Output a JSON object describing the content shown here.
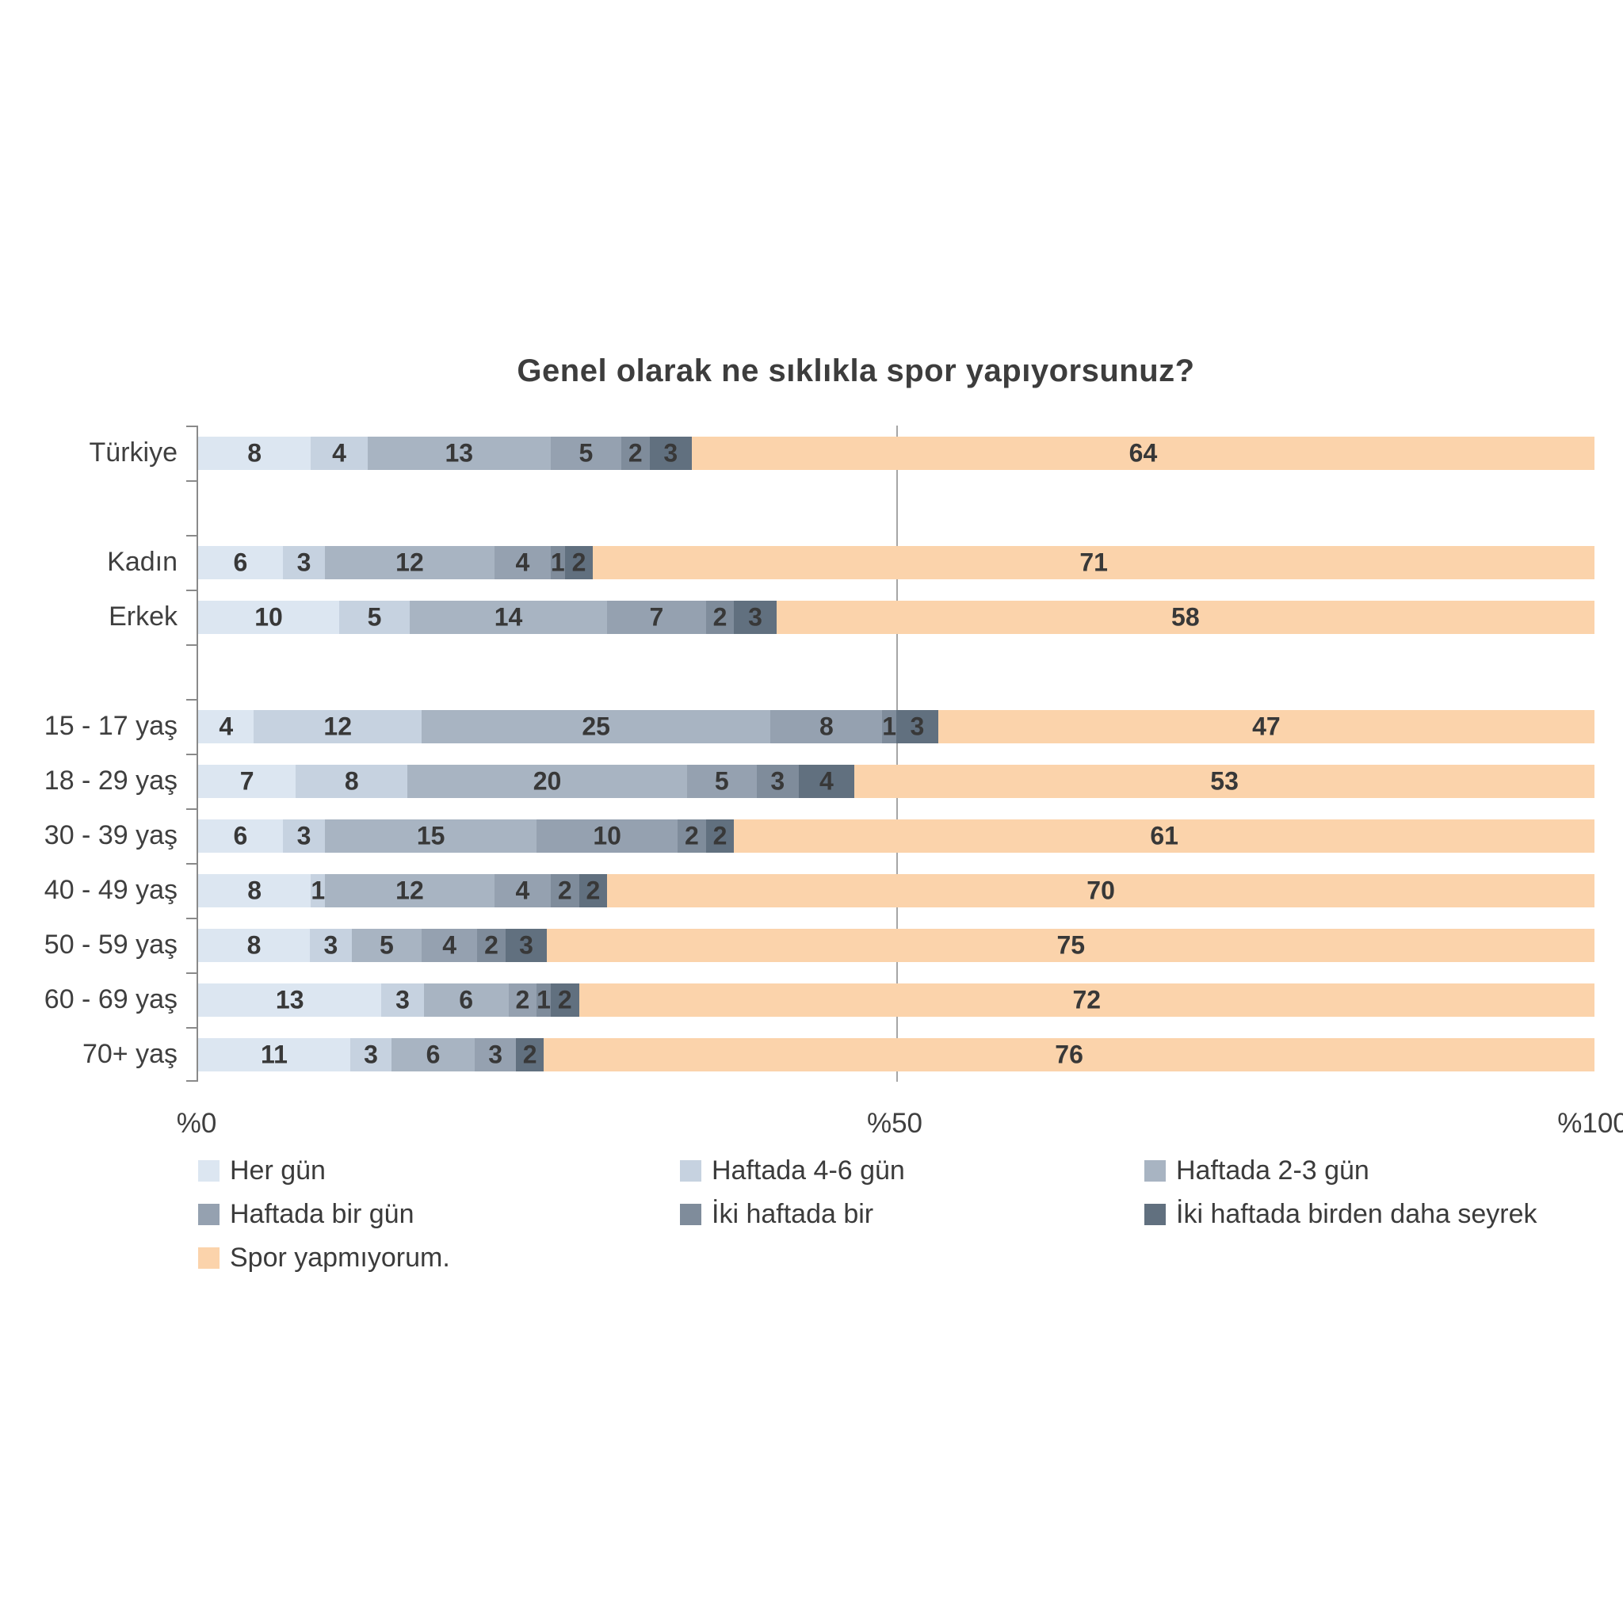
{
  "title": "Genel olarak ne sıklıkla spor yapıyorsunuz?",
  "chart_data": {
    "type": "bar",
    "orientation": "horizontal",
    "stacked": true,
    "units": "percent",
    "axis_range": [
      0,
      100
    ],
    "gridline_at": 50,
    "x_tick_labels": [
      "%0",
      "%50",
      "%100"
    ],
    "legend_position": "bottom",
    "series_names": [
      "Her gün",
      "Haftada 4-6 gün",
      "Haftada 2-3 gün",
      "Haftada bir gün",
      "İki haftada bir",
      "İki haftada birden daha seyrek",
      "Spor yapmıyorum."
    ],
    "series_colors": [
      "#dce6f1",
      "#c6d2e0",
      "#a8b4c2",
      "#95a1b0",
      "#7f8c9b",
      "#61707f",
      "#fbd3ab"
    ],
    "categories": [
      "Türkiye",
      "Kadın",
      "Erkek",
      "15 - 17 yaş",
      "18 - 29 yaş",
      "30 - 39 yaş",
      "40 - 49 yaş",
      "50 - 59 yaş",
      "60 - 69 yaş",
      "70+ yaş"
    ],
    "rows": [
      {
        "label": "Türkiye",
        "slot": 0,
        "values": [
          8,
          4,
          13,
          5,
          2,
          3,
          64
        ]
      },
      {
        "label": "Kadın",
        "slot": 2,
        "values": [
          6,
          3,
          12,
          4,
          1,
          2,
          71
        ]
      },
      {
        "label": "Erkek",
        "slot": 3,
        "values": [
          10,
          5,
          14,
          7,
          2,
          3,
          58
        ]
      },
      {
        "label": "15 - 17 yaş",
        "slot": 5,
        "values": [
          4,
          12,
          25,
          8,
          1,
          3,
          47
        ]
      },
      {
        "label": "18 - 29 yaş",
        "slot": 6,
        "values": [
          7,
          8,
          20,
          5,
          3,
          4,
          53
        ]
      },
      {
        "label": "30 - 39 yaş",
        "slot": 7,
        "values": [
          6,
          3,
          15,
          10,
          2,
          2,
          61
        ]
      },
      {
        "label": "40 - 49 yaş",
        "slot": 8,
        "values": [
          8,
          1,
          12,
          4,
          2,
          2,
          70
        ]
      },
      {
        "label": "50 - 59 yaş",
        "slot": 9,
        "values": [
          8,
          3,
          5,
          4,
          2,
          3,
          75
        ]
      },
      {
        "label": "60 - 69 yaş",
        "slot": 10,
        "values": [
          13,
          3,
          6,
          2,
          1,
          2,
          72
        ]
      },
      {
        "label": "70+ yaş",
        "slot": 11,
        "values": [
          11,
          3,
          6,
          3,
          0,
          2,
          76
        ]
      }
    ]
  }
}
